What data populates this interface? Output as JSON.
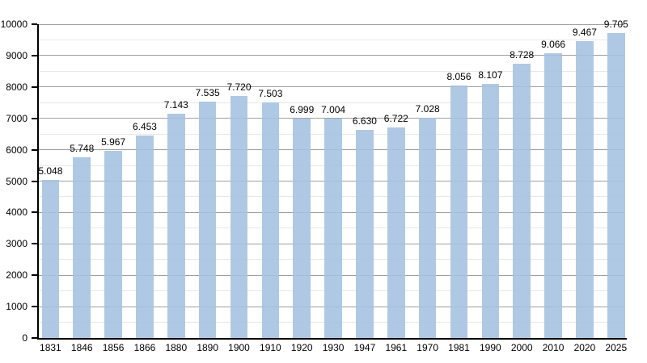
{
  "chart_data": {
    "type": "bar",
    "title": "",
    "xlabel": "",
    "ylabel": "",
    "categories": [
      "1831",
      "1846",
      "1856",
      "1866",
      "1880",
      "1890",
      "1900",
      "1910",
      "1920",
      "1930",
      "1947",
      "1961",
      "1970",
      "1981",
      "1990",
      "2000",
      "2010",
      "2020",
      "2025"
    ],
    "values": [
      5048,
      5748,
      5967,
      6453,
      7143,
      7535,
      7720,
      7503,
      6999,
      7004,
      6630,
      6722,
      7028,
      8056,
      8107,
      8728,
      9066,
      9467,
      9705
    ],
    "value_labels": [
      "5.048",
      "5.748",
      "5.967",
      "6.453",
      "7.143",
      "7.535",
      "7.720",
      "7.503",
      "6.999",
      "7.004",
      "6.630",
      "6.722",
      "7.028",
      "8.056",
      "8.107",
      "8.728",
      "9.066",
      "9.467",
      "9.705"
    ],
    "ylim": [
      0,
      10000
    ],
    "y_major_tick_step": 1000,
    "y_minor_grid_step": 500,
    "y_tick_labels": [
      "0",
      "1000",
      "2000",
      "3000",
      "4000",
      "5000",
      "6000",
      "7000",
      "8000",
      "9000",
      "10000"
    ],
    "grid": "on",
    "legend": "none",
    "colors": {
      "bar": "rgba(164,193,224,0.88)",
      "major_grid": "#a0a0a0",
      "minor_grid": "#e8e8e8",
      "axis": "#000000",
      "text": "#000000",
      "background": "#ffffff"
    }
  }
}
